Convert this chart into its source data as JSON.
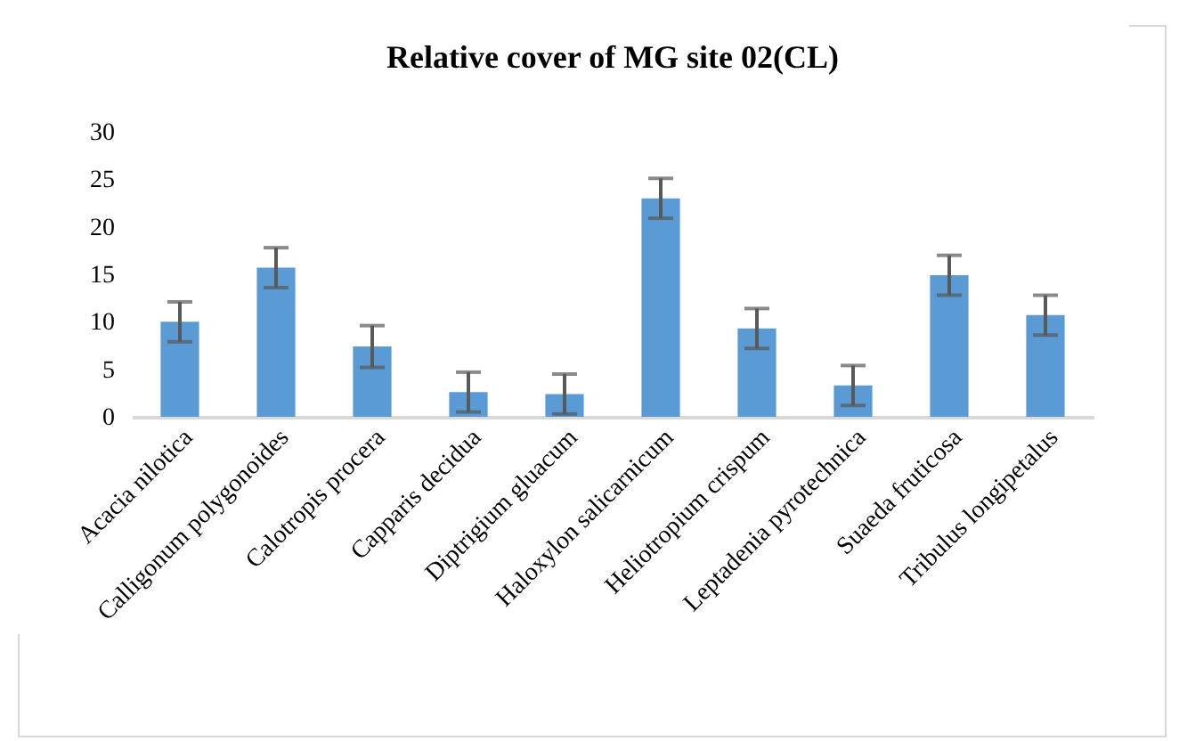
{
  "chart_data": {
    "type": "bar",
    "title": "Relative cover of MG site 02(CL)",
    "categories": [
      "Acacia nilotica",
      "Calligonum polygonoides",
      "Calotropis procera",
      "Capparis decidua",
      "Diptrigium gluacum",
      "Haloxylon salicarnicum",
      "Heliotropium crispum",
      "Leptadenia pyrotechnica",
      "Suaeda fruticosa",
      "Tribulus longipetalus"
    ],
    "values": [
      10,
      15.7,
      7.4,
      2.6,
      2.4,
      23,
      9.3,
      3.3,
      14.9,
      10.7
    ],
    "errors": [
      2.1,
      2.1,
      2.2,
      2.1,
      2.1,
      2.1,
      2.1,
      2.1,
      2.1,
      2.1
    ],
    "color": "#5b9bd5",
    "ylim": [
      0,
      30
    ],
    "yticks": [
      0,
      5,
      10,
      15,
      20,
      25,
      30
    ],
    "grid": false
  }
}
